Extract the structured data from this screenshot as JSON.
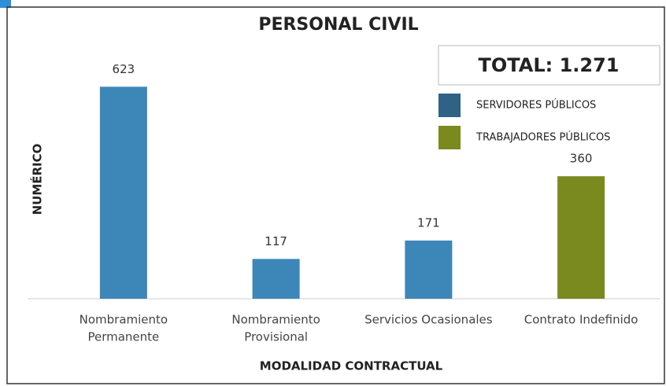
{
  "chart_data": {
    "type": "bar",
    "title": "PERSONAL CIVIL",
    "annotation": "TOTAL: 1.271",
    "x_label": "MODALIDAD CONTRACTUAL",
    "y_label": "NUMÉRICO",
    "categories": [
      [
        "Nombramiento",
        "Permanente"
      ],
      [
        "Nombramiento",
        "Provisional"
      ],
      [
        "Servicios Ocasionales"
      ],
      [
        "Contrato Indefinido"
      ]
    ],
    "series": [
      {
        "name": "SERVIDORES PÚBLICOS",
        "color": "#3d87b8",
        "legend_color": "#2f6284",
        "values": [
          623,
          117,
          171,
          null
        ]
      },
      {
        "name": "TRABAJADORES PÚBLICOS",
        "color": "#7a8a1f",
        "legend_color": "#7a8a1f",
        "values": [
          null,
          null,
          null,
          360
        ]
      }
    ],
    "ylim": [
      0,
      700
    ],
    "legend": "top-right"
  }
}
